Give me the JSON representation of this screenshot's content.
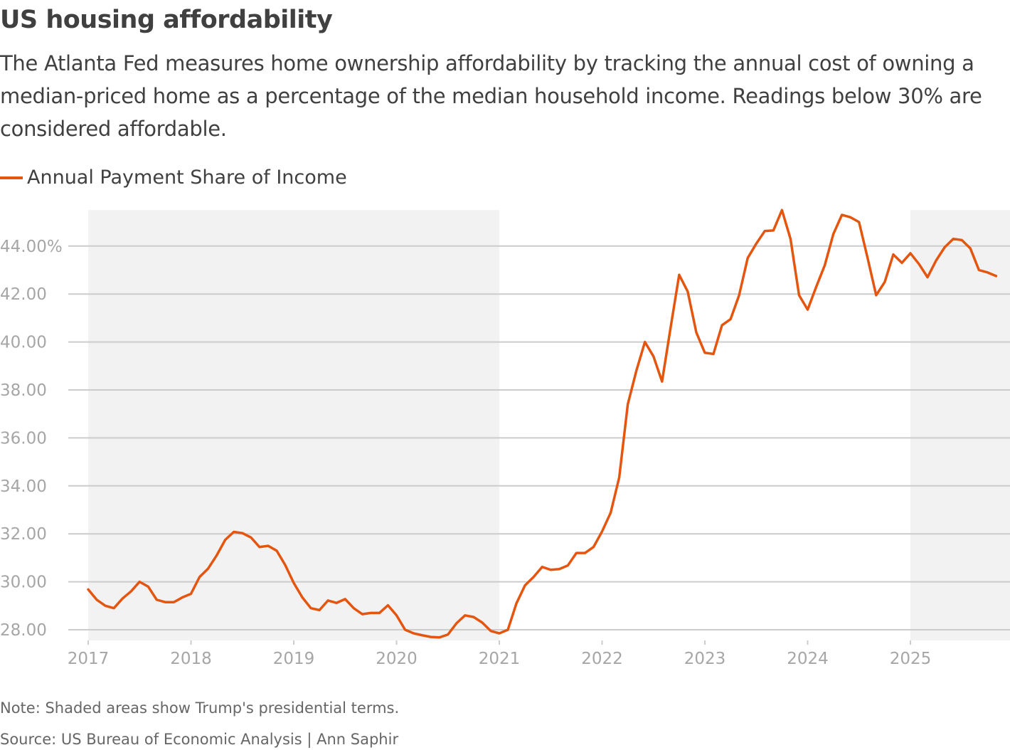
{
  "title": "US housing affordability",
  "subtitle": "The Atlanta Fed measures home ownership affordability by tracking the annual cost of owning a median-priced home as a percentage of the median household income. Readings below 30% are considered affordable.",
  "note": "Note: Shaded areas show Trump's presidential terms.",
  "source": "Source: US Bureau of Economic Analysis | Ann Saphir",
  "chart_data": {
    "type": "line",
    "title": "US housing affordability",
    "xlabel": "",
    "ylabel": "",
    "x_start": "2017-01",
    "x_frequency": "monthly",
    "xlim": [
      "2017-01",
      "2025-12"
    ],
    "ylim": [
      27.7,
      45.5
    ],
    "grid": true,
    "legend_position": "top-left",
    "x_ticks": [
      "2017",
      "2018",
      "2019",
      "2020",
      "2021",
      "2022",
      "2023",
      "2024",
      "2025"
    ],
    "y_ticks": [
      28,
      30,
      32,
      34,
      36,
      38,
      40,
      42,
      44
    ],
    "y_tick_labels": [
      "28.00",
      "30.00",
      "32.00",
      "34.00",
      "36.00",
      "38.00",
      "40.00",
      "42.00",
      "44.00%"
    ],
    "shaded_periods": [
      {
        "start": "2017-01",
        "end": "2021-01"
      },
      {
        "start": "2025-01",
        "end": "2025-12"
      }
    ],
    "shade_color": "#f2f2f2",
    "series": [
      {
        "name": "Annual Payment Share of Income",
        "color": "#e4560f",
        "values": [
          29.68,
          29.25,
          29.0,
          28.9,
          29.3,
          29.6,
          30.0,
          29.8,
          29.25,
          29.15,
          29.15,
          29.35,
          29.5,
          30.2,
          30.55,
          31.1,
          31.75,
          32.08,
          32.03,
          31.85,
          31.45,
          31.5,
          31.3,
          30.7,
          29.95,
          29.35,
          28.9,
          28.82,
          29.22,
          29.12,
          29.28,
          28.9,
          28.65,
          28.7,
          28.7,
          29.02,
          28.6,
          28.0,
          27.85,
          27.77,
          27.7,
          27.68,
          27.8,
          28.27,
          28.6,
          28.53,
          28.3,
          27.95,
          27.85,
          28.0,
          29.1,
          29.85,
          30.2,
          30.62,
          30.5,
          30.53,
          30.68,
          31.2,
          31.2,
          31.45,
          32.1,
          32.88,
          34.35,
          37.4,
          38.8,
          40.0,
          39.4,
          38.35,
          40.6,
          42.8,
          42.1,
          40.4,
          39.55,
          39.5,
          40.7,
          40.95,
          41.95,
          43.5,
          44.1,
          44.63,
          44.65,
          45.5,
          44.3,
          41.95,
          41.35,
          42.3,
          43.2,
          44.5,
          45.3,
          45.2,
          45.0,
          43.5,
          41.95,
          42.5,
          43.65,
          43.3,
          43.7,
          43.25,
          42.7,
          43.4,
          43.95,
          44.3,
          44.25,
          43.9,
          43.0,
          42.9,
          42.75
        ]
      }
    ]
  }
}
